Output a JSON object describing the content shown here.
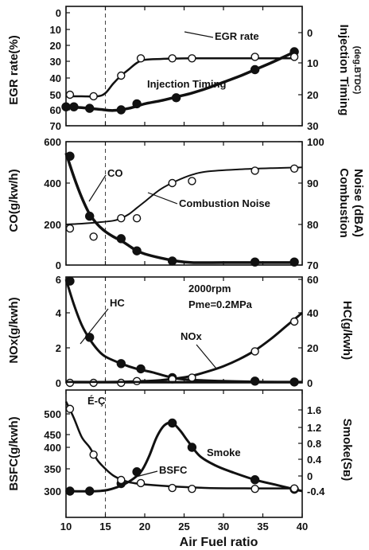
{
  "figure": {
    "x_label": "Air Fuel ratio",
    "x_ticks": [
      10,
      15,
      20,
      25,
      30,
      35,
      40
    ],
    "x_range": [
      10,
      40
    ],
    "reference_x": 15
  },
  "chart_data": [
    {
      "type": "line",
      "ylabel_left": "EGR rate(%)",
      "ylabel_right": "Injection Timing",
      "ylabel_right_unit": "(deg.BTDC)",
      "left_ticks": [
        "0",
        "10",
        "20",
        "30",
        "40",
        "50",
        "60",
        "70"
      ],
      "right_ticks": [
        "0",
        "10",
        "20",
        "30"
      ],
      "ylim_left": [
        0,
        70
      ],
      "ylim_right": [
        0,
        35
      ],
      "series": [
        {
          "name": "EGR rate",
          "axis": "left",
          "marker": "filled",
          "weight": 3.5,
          "x": [
            10,
            11,
            13,
            17,
            19,
            24,
            34,
            39
          ],
          "y": [
            58,
            58,
            59,
            60,
            56,
            52,
            35,
            24
          ],
          "curve_x": [
            10,
            12,
            14,
            16,
            18,
            20,
            22,
            24,
            26,
            28,
            30,
            32,
            34,
            36,
            38,
            39
          ],
          "curve_y": [
            58,
            58.6,
            59.5,
            60.4,
            59,
            56,
            54,
            51.5,
            49,
            46,
            42.5,
            39,
            35,
            31,
            26.5,
            24
          ]
        },
        {
          "name": "Injection Timing",
          "axis": "right",
          "marker": "open",
          "weight": 2.5,
          "x": [
            10.5,
            13.5,
            17,
            19.5,
            23.5,
            26,
            34,
            39
          ],
          "y": [
            20,
            20.5,
            14,
            8.5,
            8.5,
            8.5,
            8,
            8
          ],
          "curve_x": [
            10,
            12,
            14,
            15,
            16,
            17,
            18,
            19,
            20,
            22,
            26,
            30,
            34,
            39
          ],
          "curve_y": [
            20.5,
            20.5,
            20.5,
            19.5,
            16.5,
            14,
            12,
            10,
            9,
            8.7,
            8.5,
            8.5,
            8.5,
            8.5
          ]
        }
      ],
      "annotations": [
        "EGR rate",
        "Injection Timing"
      ]
    },
    {
      "type": "line",
      "ylabel_left": "CO(g/kw/h)",
      "ylabel_right": "Combustion",
      "ylabel_right_unit": "Noise (dBA)",
      "left_ticks": [
        "0",
        "200",
        "400",
        "600"
      ],
      "right_ticks": [
        "70",
        "80",
        "90",
        "100"
      ],
      "ylim_left": [
        0,
        600
      ],
      "ylim_right": [
        70,
        100
      ],
      "series": [
        {
          "name": "CO",
          "axis": "left",
          "marker": "filled",
          "weight": 3.5,
          "x": [
            10.5,
            13,
            17,
            19,
            23.5,
            34,
            39
          ],
          "y": [
            530,
            240,
            130,
            70,
            20,
            15,
            15
          ],
          "curve_x": [
            10,
            11,
            12,
            13,
            14,
            15,
            16,
            17,
            18,
            19,
            20,
            22,
            24,
            26,
            30,
            34,
            39
          ],
          "curve_y": [
            545,
            430,
            330,
            250,
            200,
            165,
            140,
            120,
            95,
            70,
            55,
            35,
            20,
            12,
            12,
            12,
            12
          ]
        },
        {
          "name": "Combustion Noise",
          "axis": "right",
          "marker": "open",
          "weight": 2,
          "x": [
            10.5,
            13.5,
            17,
            19,
            23.5,
            26,
            34,
            39
          ],
          "y": [
            79,
            77,
            81.5,
            81.5,
            90,
            90.5,
            93,
            93.5
          ],
          "curve_x": [
            10,
            12,
            14,
            16,
            17,
            18,
            19,
            20,
            22,
            24,
            26,
            28,
            32,
            36,
            40
          ],
          "curve_y": [
            80,
            80.2,
            80.5,
            80.9,
            81.5,
            82.5,
            84,
            85.5,
            88.5,
            90.5,
            92,
            92.8,
            93.3,
            93.6,
            93.8
          ]
        }
      ],
      "annotations": [
        "CO",
        "Combustion Noise"
      ]
    },
    {
      "type": "line",
      "ylabel_left": "NOx(g/kwh)",
      "ylabel_right": "HC(g/kwh)",
      "left_ticks": [
        "0",
        "2",
        "4",
        "6"
      ],
      "right_ticks": [
        "0",
        "20",
        "40",
        "60"
      ],
      "ylim_left": [
        0,
        6
      ],
      "ylim_right": [
        0,
        60
      ],
      "series": [
        {
          "name": "HC",
          "axis": "right",
          "marker": "filled",
          "weight": 3,
          "x": [
            10.5,
            13,
            17,
            19.5,
            23.5,
            34,
            39
          ],
          "y": [
            59,
            26,
            11,
            8,
            3,
            1,
            0.5
          ],
          "curve_x": [
            10,
            11,
            12,
            13,
            14,
            15,
            17,
            19,
            21,
            23,
            25,
            30,
            35,
            40
          ],
          "curve_y": [
            60,
            45,
            33,
            25,
            19,
            15,
            11,
            8,
            6,
            3.5,
            2,
            1,
            0.6,
            0.5
          ]
        },
        {
          "name": "NOx",
          "axis": "left",
          "marker": "open",
          "weight": 3,
          "x": [
            10.5,
            13.5,
            17,
            19,
            23.5,
            26,
            34,
            39
          ],
          "y": [
            0,
            0,
            0,
            0.1,
            0.2,
            0.3,
            1.8,
            3.5
          ],
          "curve_x": [
            10,
            16,
            20,
            22,
            24,
            26,
            28,
            30,
            32,
            34,
            36,
            38,
            40
          ],
          "curve_y": [
            0.05,
            0.05,
            0.1,
            0.15,
            0.25,
            0.4,
            0.65,
            0.95,
            1.35,
            1.85,
            2.5,
            3.25,
            4.0
          ]
        },
        {
          "name": "baseline",
          "axis": "left",
          "marker": "none",
          "weight": 2.5,
          "x": [],
          "y": [],
          "curve_x": [
            10,
            40
          ],
          "curve_y": [
            0.05,
            0.05
          ]
        }
      ],
      "annotations": [
        "HC",
        "NOx",
        "2000rpm",
        "Pme=0.2MPa"
      ]
    },
    {
      "type": "line",
      "ylabel_left": "BSFC(g/kwh)",
      "ylabel_right": "Smoke(Sʙ)",
      "left_ticks": [
        "300",
        "350",
        "400",
        "450",
        "500"
      ],
      "right_ticks": [
        "-0.4",
        "0",
        "0.4",
        "0.8",
        "1.2",
        "1.6"
      ],
      "ylim_left": [
        280,
        540
      ],
      "ylim_right": [
        -0.52,
        1.6
      ],
      "series": [
        {
          "name": "Smoke",
          "axis": "right",
          "marker": "filled",
          "weight": 3,
          "x": [
            10.5,
            13,
            17,
            19,
            23.5,
            26,
            34,
            39
          ],
          "y": [
            -0.4,
            -0.4,
            -0.2,
            0.1,
            1.3,
            0.7,
            -0.1,
            -0.35
          ],
          "curve_x": [
            10,
            14,
            16,
            18,
            19.5,
            20.5,
            21.5,
            22.5,
            23.5,
            24.5,
            25.5,
            27,
            29,
            31,
            34,
            37,
            40
          ],
          "curve_y": [
            -0.4,
            -0.4,
            -0.33,
            -0.15,
            0.1,
            0.45,
            0.95,
            1.25,
            1.3,
            1.12,
            0.85,
            0.48,
            0.25,
            0.1,
            -0.1,
            -0.25,
            -0.4
          ]
        },
        {
          "name": "BSFC",
          "axis": "left",
          "marker": "open",
          "weight": 2.5,
          "x": [
            10.5,
            13.5,
            17,
            19.5,
            23.5,
            26,
            34,
            39
          ],
          "y": [
            512,
            383,
            325,
            318,
            307,
            305,
            305,
            306
          ],
          "curve_x": [
            10,
            11,
            12,
            13,
            14,
            15,
            16,
            17,
            18,
            19,
            20,
            24,
            28,
            34,
            39
          ],
          "curve_y": [
            530,
            490,
            440,
            400,
            370,
            350,
            335,
            326,
            320,
            317,
            315,
            310,
            307,
            306,
            306
          ]
        }
      ],
      "annotations": [
        "Smoke",
        "BSFC",
        "É-Ç"
      ]
    }
  ]
}
